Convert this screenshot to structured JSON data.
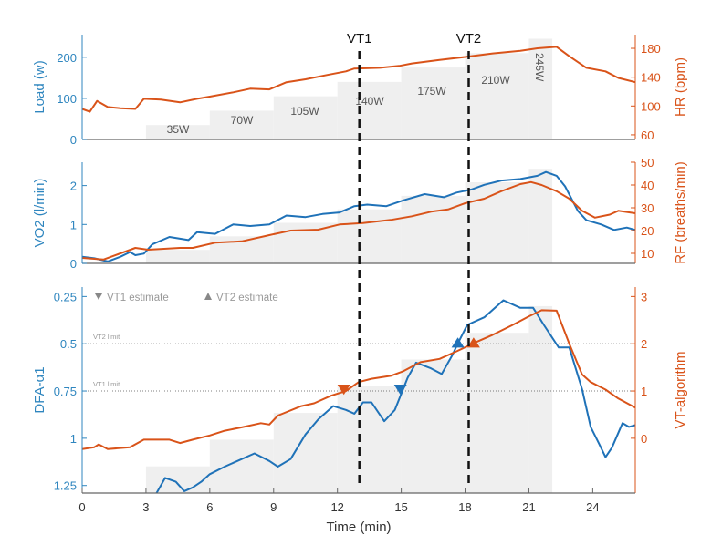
{
  "colors": {
    "left": "#2f86bf",
    "right": "#d95319",
    "series_blue": "#1f72b8",
    "series_orange": "#d95319",
    "load_fill": "#efefef",
    "vt_line": "#111111",
    "annot": "#8a8a8a"
  },
  "shared_x": {
    "label": "Time (min)",
    "range": [
      0,
      26
    ],
    "ticks": [
      0,
      3,
      6,
      9,
      12,
      15,
      18,
      21,
      24
    ]
  },
  "vt_lines": [
    {
      "label": "VT1",
      "x": 13.03
    },
    {
      "label": "VT2",
      "x": 18.17
    }
  ],
  "load_steps": [
    {
      "label": "35W",
      "start": 3,
      "end": 6,
      "value": 35
    },
    {
      "label": "70W",
      "start": 6,
      "end": 9,
      "value": 70
    },
    {
      "label": "105W",
      "start": 9,
      "end": 12,
      "value": 105
    },
    {
      "label": "140W",
      "start": 12,
      "end": 15,
      "value": 140
    },
    {
      "label": "175W",
      "start": 15,
      "end": 18,
      "value": 175
    },
    {
      "label": "210W",
      "start": 18,
      "end": 21,
      "value": 210
    },
    {
      "label": "245W",
      "start": 21,
      "end": 22.1,
      "value": 245
    }
  ],
  "chart_data": [
    {
      "type": "line",
      "ylabel": "Load (w)",
      "ylim": [
        0,
        255
      ],
      "yticks": [
        0,
        100,
        200
      ],
      "y2label": "HR (bpm)",
      "y2lim": [
        53.6,
        199
      ],
      "y2ticks": [
        60,
        100,
        140,
        180
      ],
      "grid": false,
      "series": [
        {
          "axis": "right",
          "color": "orange",
          "x": [
            0,
            0.36,
            0.7,
            1.2,
            1.8,
            2.5,
            2.9,
            3.7,
            4.6,
            5.4,
            6.0,
            7.1,
            7.9,
            8.8,
            9.6,
            10.5,
            11.5,
            12.4,
            12.8,
            14.0,
            14.9,
            15.5,
            16.8,
            18.0,
            19.3,
            20.6,
            21.4,
            22.3,
            22.9,
            23.7,
            24.6,
            25.2,
            26
          ],
          "y": [
            96,
            92,
            107,
            98.6,
            97,
            96,
            110,
            109,
            105,
            110,
            113,
            119,
            124,
            123,
            133,
            137,
            143,
            148,
            152,
            153,
            155.6,
            159,
            164,
            168,
            173,
            176.6,
            180,
            182,
            169,
            153,
            148,
            139,
            133
          ]
        }
      ]
    },
    {
      "type": "line",
      "ylabel": "VO2 (l/min)",
      "ylim": [
        0,
        2.6
      ],
      "yticks": [
        0,
        1,
        2
      ],
      "y2label": "RF (breaths/min)",
      "y2lim": [
        5.6,
        50
      ],
      "y2ticks": [
        10,
        20,
        30,
        40,
        50
      ],
      "grid": false,
      "series": [
        {
          "axis": "left",
          "color": "blue",
          "x": [
            0,
            0.57,
            1.2,
            1.8,
            2.25,
            2.5,
            2.9,
            3.3,
            4.1,
            5.0,
            5.4,
            6.25,
            7.1,
            7.9,
            8.8,
            9.6,
            10.5,
            11.3,
            12.1,
            12.8,
            13.4,
            14.3,
            15.1,
            16.1,
            17.0,
            17.6,
            18.3,
            18.9,
            19.7,
            20.6,
            21.4,
            21.8,
            22.3,
            22.7,
            23.3,
            23.7,
            24.4,
            25.0,
            25.6,
            26
          ],
          "y": [
            0.17,
            0.13,
            0.05,
            0.17,
            0.29,
            0.21,
            0.25,
            0.49,
            0.68,
            0.6,
            0.8,
            0.76,
            1.0,
            0.96,
            1.0,
            1.23,
            1.19,
            1.27,
            1.31,
            1.47,
            1.51,
            1.47,
            1.62,
            1.78,
            1.7,
            1.82,
            1.9,
            2.02,
            2.13,
            2.17,
            2.25,
            2.35,
            2.25,
            1.98,
            1.35,
            1.11,
            1.0,
            0.86,
            0.92,
            0.86
          ]
        },
        {
          "axis": "right",
          "color": "orange",
          "x": [
            0,
            1.0,
            1.8,
            2.5,
            3.1,
            4.6,
            5.2,
            6.25,
            7.5,
            8.8,
            9.8,
            11.1,
            12.1,
            13.2,
            14.5,
            15.5,
            16.4,
            17.2,
            18.0,
            18.9,
            19.7,
            20.6,
            21.1,
            21.6,
            22.3,
            22.9,
            23.5,
            24.1,
            24.8,
            25.2,
            26
          ],
          "y": [
            8,
            7.3,
            10,
            12.4,
            11.6,
            12.4,
            12.4,
            14.7,
            15.3,
            18,
            20,
            20.4,
            22.7,
            23.3,
            24.7,
            26.3,
            28.3,
            29.3,
            32,
            34,
            37.3,
            40.4,
            41.3,
            40,
            37.3,
            34,
            28.7,
            25.7,
            27,
            28.7,
            27.6
          ]
        }
      ]
    },
    {
      "type": "line",
      "ylabel": "DFA-α1",
      "ylim": [
        0.2,
        1.29
      ],
      "y_reversed": true,
      "yticks": [
        0.25,
        0.5,
        0.75,
        1,
        1.25
      ],
      "y2label": "VT-algorithm",
      "y2lim": [
        -1.16,
        3.2
      ],
      "y2ticks": [
        0,
        1,
        2,
        3
      ],
      "grid": false,
      "hlines": [
        {
          "label": "VT2 limit",
          "y": 0.5
        },
        {
          "label": "VT1 limit",
          "y": 0.75
        }
      ],
      "legend": {
        "placement": "top-left",
        "entries": [
          {
            "marker": "down-triangle",
            "label": "VT1 estimate"
          },
          {
            "marker": "up-triangle",
            "label": "VT2 estimate"
          }
        ]
      },
      "series": [
        {
          "axis": "left",
          "color": "blue",
          "x": [
            3.4,
            3.9,
            4.4,
            4.8,
            5.2,
            5.6,
            6.0,
            6.7,
            7.3,
            8.1,
            8.8,
            9.2,
            9.8,
            10.5,
            11.1,
            11.8,
            12.4,
            12.8,
            13.2,
            13.6,
            14.2,
            14.7,
            15.3,
            15.7,
            16.4,
            16.9,
            17.4,
            17.7,
            18.1,
            18.9,
            19.8,
            20.6,
            21.2,
            21.7,
            22.4,
            22.9,
            23.5,
            23.9,
            24.3,
            24.6,
            24.9,
            25.4,
            25.7,
            26
          ],
          "y": [
            1.31,
            1.21,
            1.23,
            1.28,
            1.26,
            1.23,
            1.19,
            1.15,
            1.12,
            1.08,
            1.12,
            1.15,
            1.11,
            0.98,
            0.9,
            0.83,
            0.85,
            0.87,
            0.81,
            0.81,
            0.91,
            0.85,
            0.68,
            0.6,
            0.63,
            0.66,
            0.56,
            0.49,
            0.4,
            0.36,
            0.27,
            0.31,
            0.31,
            0.4,
            0.52,
            0.52,
            0.74,
            0.94,
            1.03,
            1.1,
            1.05,
            0.92,
            0.94,
            0.93
          ]
        },
        {
          "axis": "right",
          "color": "orange",
          "x": [
            0,
            0.57,
            0.78,
            1.2,
            2.25,
            2.9,
            4.1,
            4.6,
            5.2,
            6.0,
            6.7,
            7.5,
            8.4,
            8.8,
            9.2,
            10.3,
            10.9,
            11.7,
            12.4,
            13.0,
            13.6,
            14.5,
            15.1,
            15.9,
            16.8,
            17.6,
            18.5,
            19.3,
            20.2,
            21.0,
            21.6,
            22.3,
            22.9,
            23.5,
            23.9,
            24.6,
            25.2,
            26
          ],
          "y": [
            -0.23,
            -0.19,
            -0.13,
            -0.23,
            -0.19,
            -0.03,
            -0.03,
            -0.1,
            -0.03,
            0.06,
            0.16,
            0.23,
            0.32,
            0.29,
            0.48,
            0.68,
            0.74,
            0.9,
            1.0,
            1.19,
            1.26,
            1.32,
            1.42,
            1.61,
            1.68,
            1.84,
            2.03,
            2.19,
            2.39,
            2.58,
            2.71,
            2.7,
            2.0,
            1.35,
            1.19,
            1.03,
            0.84,
            0.65
          ]
        }
      ],
      "markers": [
        {
          "name": "vt1-algorithm-estimate",
          "shape": "down-triangle",
          "color": "orange",
          "axis": "right",
          "x": 12.3,
          "y": 1
        },
        {
          "name": "vt1-dfa-estimate",
          "shape": "down-triangle",
          "color": "blue",
          "axis": "left",
          "x": 14.96,
          "y": 0.75
        },
        {
          "name": "vt2-dfa-estimate",
          "shape": "up-triangle",
          "color": "blue",
          "axis": "left",
          "x": 17.66,
          "y": 0.5
        },
        {
          "name": "vt2-algorithm-estimate",
          "shape": "up-triangle",
          "color": "orange",
          "axis": "right",
          "x": 18.4,
          "y": 2
        }
      ]
    }
  ]
}
